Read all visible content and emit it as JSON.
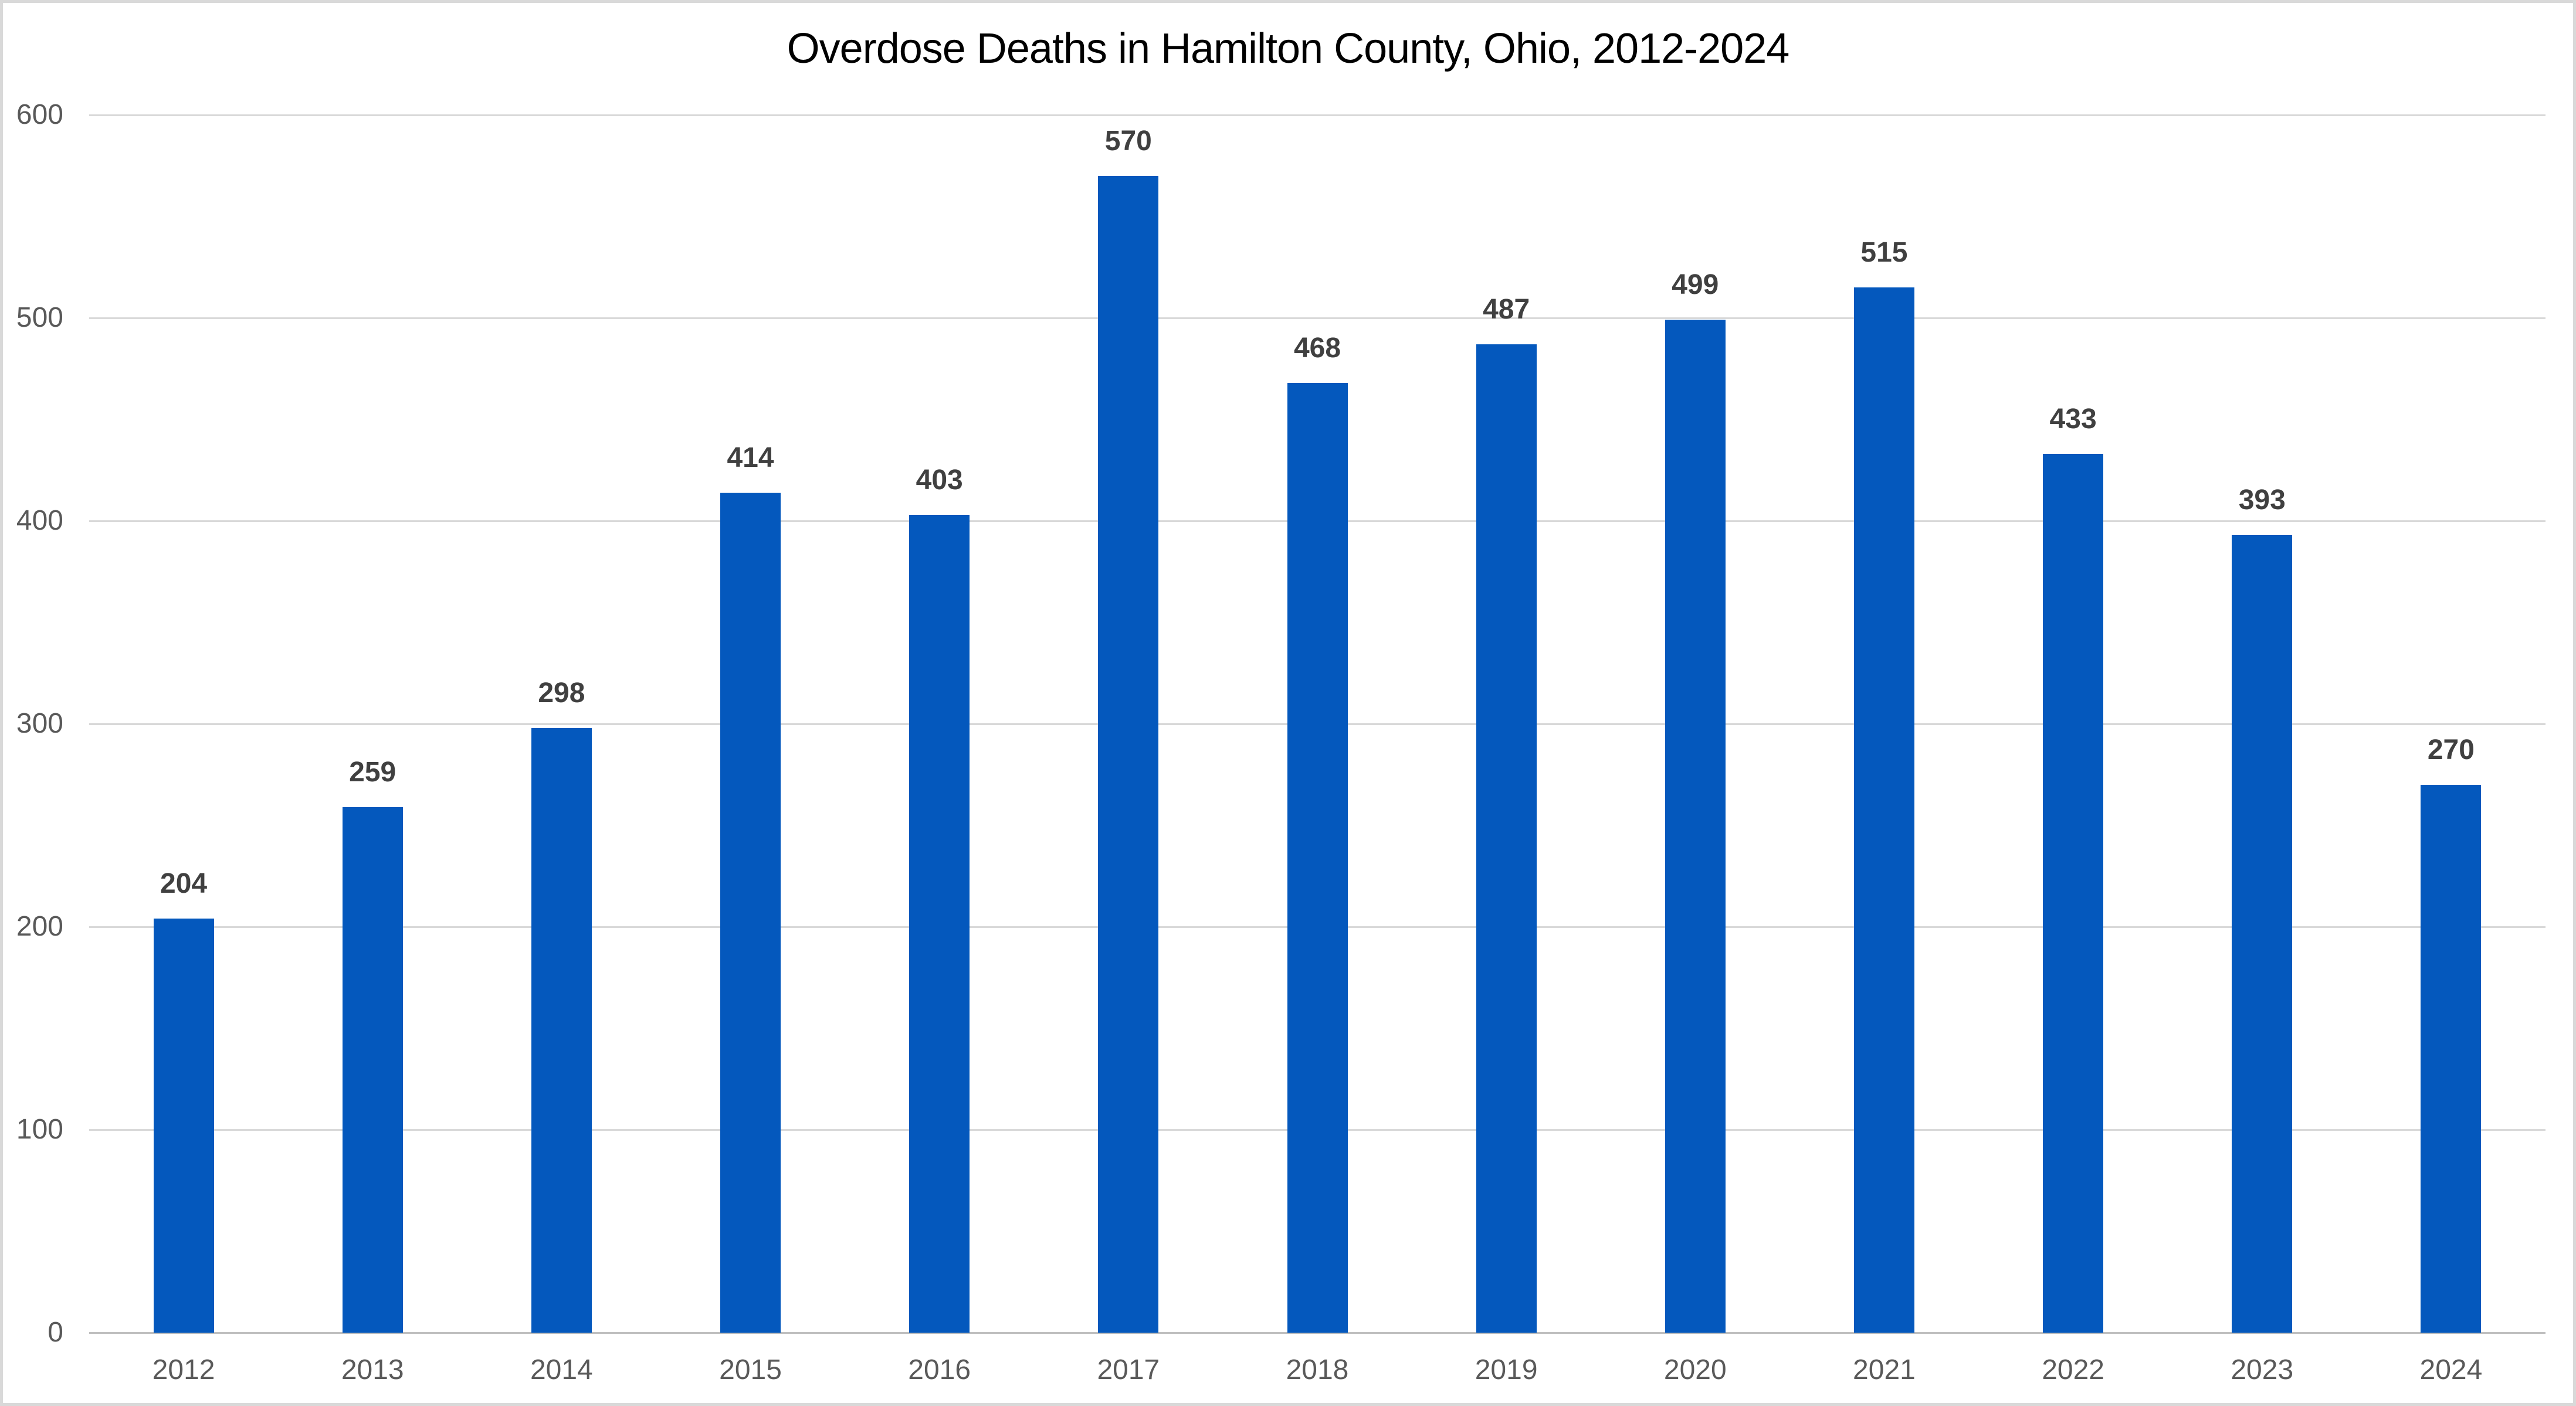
{
  "chart_data": {
    "type": "bar",
    "title": "Overdose Deaths in Hamilton County, Ohio, 2012-2024",
    "categories": [
      "2012",
      "2013",
      "2014",
      "2015",
      "2016",
      "2017",
      "2018",
      "2019",
      "2020",
      "2021",
      "2022",
      "2023",
      "2024"
    ],
    "values": [
      204,
      259,
      298,
      414,
      403,
      570,
      468,
      487,
      499,
      515,
      433,
      393,
      270
    ],
    "xlabel": "",
    "ylabel": "",
    "ylim": [
      0,
      600
    ],
    "yticks": [
      0,
      100,
      200,
      300,
      400,
      500,
      600
    ],
    "grid": "horizontal",
    "legend": "none",
    "data_labels": true
  },
  "colors": {
    "bar_fill": "#0458bd",
    "gridline": "#d9d9d9",
    "axis_line": "#bfbfbf",
    "tick_label": "#595959",
    "data_label": "#404040",
    "title": "#000000",
    "chart_border": "#d9d9d9",
    "background": "#ffffff"
  }
}
